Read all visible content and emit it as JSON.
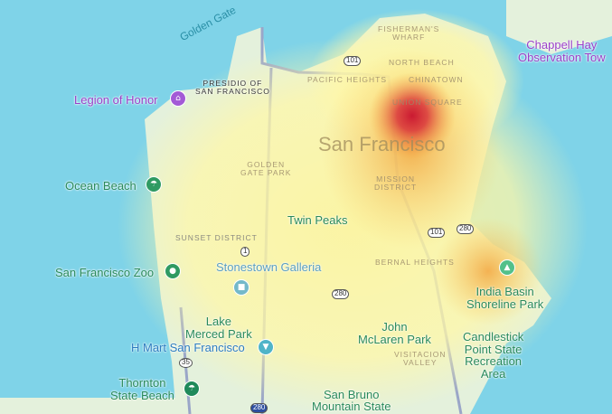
{
  "map": {
    "water_labels": [
      "Golden Gate"
    ],
    "city_label": "San Francisco",
    "neighborhoods": [
      "FISHERMAN'S\nWHARF",
      "NORTH BEACH",
      "CHINATOWN",
      "PACIFIC HEIGHTS",
      "UNION SQUARE",
      "MISSION\nDISTRICT",
      "GOLDEN\nGATE PARK",
      "SUNSET DISTRICT",
      "BERNAL HEIGHTS",
      "VISITACION\nVALLEY"
    ],
    "presidio": "PRESIDIO OF\nSAN FRANCISCO",
    "pois": {
      "legion": "Legion of Honor",
      "ocean_beach": "Ocean Beach",
      "zoo": "San Francisco Zoo",
      "stonestown": "Stonestown Galleria",
      "twin_peaks": "Twin Peaks",
      "lake_merced": "Lake\nMerced Park",
      "hmart": "H Mart San Francisco",
      "thornton": "Thornton\nState Beach",
      "john_mclaren": "John\nMcLaren Park",
      "san_bruno": "San Bruno\nMountain State",
      "india_basin": "India Basin\nShoreline Park",
      "candlestick": "Candlestick\nPoint State\nRecreation\nArea",
      "chappell": "Chappell Hay\nObservation Tow"
    },
    "route_shields": [
      "101",
      "101",
      "1",
      "280",
      "280",
      "35",
      "280"
    ],
    "heatmap": {
      "peak_location": "Union Square",
      "colors": {
        "low": "#fff7a0",
        "mid": "#f6a93b",
        "high": "#c8102e"
      }
    }
  }
}
